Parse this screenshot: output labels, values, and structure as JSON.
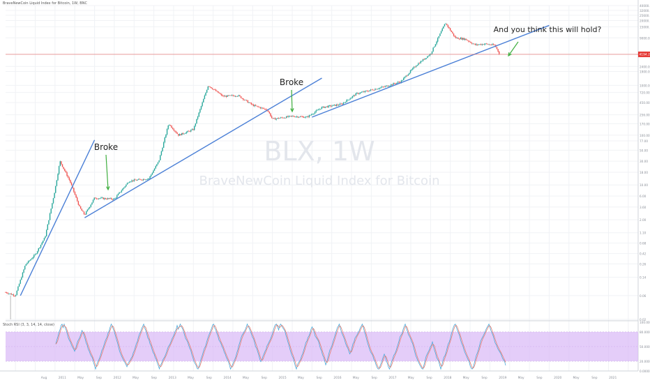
{
  "header": {
    "title": "BraveNewCoin Liquid Index for Bitcoin, 1W, BNC"
  },
  "watermark": {
    "symbol": "BLX, 1W",
    "name": "BraveNewCoin Liquid Index for Bitcoin"
  },
  "rsi_header": {
    "title": "Stoch RSI (3, 3, 14, 14, close)"
  },
  "annotations": {
    "broke_1": "Broke",
    "broke_2": "Broke",
    "question": "And you think this will hold?"
  },
  "price_label": "4194.20",
  "colors": {
    "up": "#26a69a",
    "down": "#ef5350",
    "trendline": "#4a7fd6",
    "arrow": "#3fae3f",
    "rsi_band": "#d9b8f7",
    "rsi_k": "#4aa8d8",
    "rsi_d": "#e87b6e",
    "price_line": "#e06666"
  },
  "chart_data": [
    {
      "type": "candlestick",
      "title": "BraveNewCoin Liquid Index for Bitcoin, 1W, BNC",
      "y_scale": "log",
      "y_ticks": [
        "40000.00",
        "32000.00",
        "25600.00",
        "20000.00",
        "15000.00",
        "9000.00",
        "4194.20",
        "2400.00",
        "1900.00",
        "1000.00",
        "720.00",
        "450.00",
        "256.00",
        "170.00",
        "100.00",
        "77.00",
        "50.00",
        "30.00",
        "18.00",
        "10.00",
        "6.00",
        "3.60",
        "2.00",
        "1.10",
        "0.68",
        "0.42",
        "0.26",
        "0.14",
        "0.06",
        "0.02"
      ],
      "x_ticks": [
        "Aug",
        "2011",
        "May",
        "Sep",
        "2012",
        "May",
        "Sep",
        "2013",
        "May",
        "Sep",
        "2014",
        "May",
        "Sep",
        "2015",
        "May",
        "Sep",
        "2016",
        "May",
        "Sep",
        "2017",
        "May",
        "Sep",
        "2018",
        "May",
        "Sep",
        "2019",
        "May",
        "Sep",
        "2020",
        "May",
        "Sep",
        "2021"
      ],
      "price_path": [
        [
          "2010-07",
          0.07
        ],
        [
          "2010-09",
          0.06
        ],
        [
          "2010-11",
          0.25
        ],
        [
          "2011-01",
          0.4
        ],
        [
          "2011-03",
          0.9
        ],
        [
          "2011-05",
          8
        ],
        [
          "2011-06",
          30
        ],
        [
          "2011-08",
          12
        ],
        [
          "2011-10",
          3.5
        ],
        [
          "2011-11",
          2.5
        ],
        [
          "2012-01",
          5.5
        ],
        [
          "2012-05",
          5.2
        ],
        [
          "2012-08",
          12
        ],
        [
          "2012-12",
          13.5
        ],
        [
          "2013-02",
          30
        ],
        [
          "2013-04",
          170
        ],
        [
          "2013-06",
          100
        ],
        [
          "2013-09",
          130
        ],
        [
          "2013-12",
          1000
        ],
        [
          "2014-03",
          600
        ],
        [
          "2014-06",
          630
        ],
        [
          "2014-09",
          400
        ],
        [
          "2014-12",
          320
        ],
        [
          "2015-01",
          210
        ],
        [
          "2015-05",
          240
        ],
        [
          "2015-08",
          230
        ],
        [
          "2015-11",
          360
        ],
        [
          "2016-03",
          420
        ],
        [
          "2016-06",
          680
        ],
        [
          "2016-12",
          960
        ],
        [
          "2017-03",
          1200
        ],
        [
          "2017-06",
          2500
        ],
        [
          "2017-09",
          4300
        ],
        [
          "2017-12",
          18000
        ],
        [
          "2018-02",
          9000
        ],
        [
          "2018-04",
          8500
        ],
        [
          "2018-06",
          6500
        ],
        [
          "2018-08",
          6800
        ],
        [
          "2018-10",
          6400
        ],
        [
          "2018-11",
          4194.2
        ]
      ],
      "trendlines": [
        {
          "from": [
            "2010-10",
            0.06
          ],
          "to": [
            "2012-01",
            80
          ]
        },
        {
          "from": [
            "2011-11",
            2.2
          ],
          "to": [
            "2015-11",
            1400
          ]
        },
        {
          "from": [
            "2015-09",
            230
          ],
          "to": [
            "2019-09",
            16000
          ]
        }
      ],
      "horizontal_line": 4194.2
    },
    {
      "type": "line",
      "title": "Stoch RSI (3, 3, 14, 14, close)",
      "y_ticks": [
        "100.0000",
        "80.0000",
        "50.0000",
        "20.0000",
        "0.0000"
      ],
      "band": [
        20,
        80
      ],
      "series": [
        {
          "name": "K"
        },
        {
          "name": "D"
        }
      ]
    }
  ]
}
